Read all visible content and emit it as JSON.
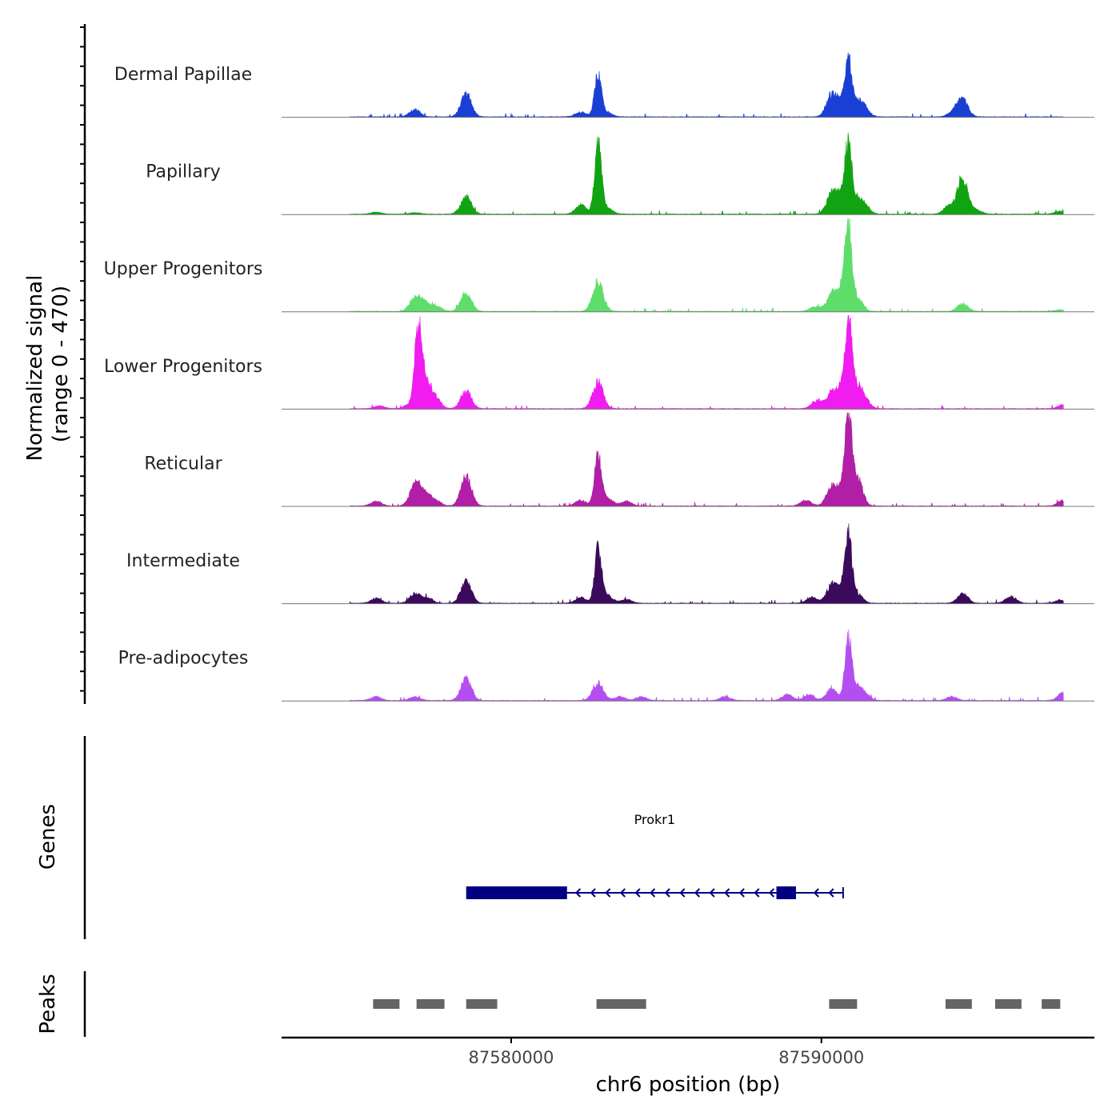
{
  "chart_data": {
    "type": "area",
    "title": "",
    "ylabel_line1": "Normalized signal",
    "ylabel_line2": "(range 0 - 470)",
    "xlabel": "chr6 position (bp)",
    "xlim": [
      87572600,
      87598800
    ],
    "ylim": [
      0,
      470
    ],
    "x_ticks": [
      87580000,
      87590000
    ],
    "x_tick_labels": [
      "87580000",
      "87590000"
    ],
    "genes_label": "Genes",
    "peaks_label": "Peaks",
    "series": [
      {
        "name": "Dermal Papillae",
        "color": "#1a3fd4",
        "peaks": [
          [
            87576900,
            40
          ],
          [
            87578550,
            120
          ],
          [
            87582240,
            25
          ],
          [
            87582800,
            220
          ],
          [
            87583100,
            20
          ],
          [
            87590330,
            110
          ],
          [
            87590650,
            60
          ],
          [
            87590870,
            270
          ],
          [
            87591150,
            70
          ],
          [
            87591380,
            40
          ],
          [
            87594250,
            25
          ],
          [
            87594550,
            90
          ]
        ]
      },
      {
        "name": "Papillary",
        "color": "#12a312",
        "peaks": [
          [
            87575650,
            10
          ],
          [
            87576900,
            8
          ],
          [
            87578550,
            90
          ],
          [
            87582250,
            50
          ],
          [
            87582800,
            370
          ],
          [
            87583100,
            30
          ],
          [
            87590330,
            100
          ],
          [
            87590650,
            80
          ],
          [
            87590870,
            340
          ],
          [
            87591150,
            60
          ],
          [
            87591380,
            40
          ],
          [
            87594100,
            40
          ],
          [
            87594550,
            190
          ],
          [
            87595000,
            20
          ],
          [
            87597700,
            15
          ]
        ]
      },
      {
        "name": "Upper Progenitors",
        "color": "#5edd6a",
        "peaks": [
          [
            87576900,
            70
          ],
          [
            87577200,
            45
          ],
          [
            87577600,
            25
          ],
          [
            87578550,
            100
          ],
          [
            87582800,
            150
          ],
          [
            87590330,
            80
          ],
          [
            87590650,
            100
          ],
          [
            87590870,
            400
          ],
          [
            87591150,
            70
          ],
          [
            87589800,
            25
          ],
          [
            87594550,
            40
          ],
          [
            87597700,
            8
          ]
        ]
      },
      {
        "name": "Lower Progenitors",
        "color": "#f01cf0",
        "peaks": [
          [
            87575750,
            15
          ],
          [
            87576700,
            20
          ],
          [
            87577000,
            370
          ],
          [
            87577200,
            150
          ],
          [
            87577550,
            60
          ],
          [
            87578550,
            90
          ],
          [
            87582800,
            140
          ],
          [
            87590330,
            80
          ],
          [
            87590650,
            90
          ],
          [
            87590870,
            430
          ],
          [
            87591150,
            110
          ],
          [
            87591400,
            40
          ],
          [
            87589850,
            40
          ],
          [
            87597800,
            20
          ]
        ]
      },
      {
        "name": "Reticular",
        "color": "#b01fa5",
        "peaks": [
          [
            87575650,
            25
          ],
          [
            87576900,
            110
          ],
          [
            87577200,
            60
          ],
          [
            87577550,
            30
          ],
          [
            87578550,
            150
          ],
          [
            87582250,
            30
          ],
          [
            87582800,
            260
          ],
          [
            87583100,
            40
          ],
          [
            87583700,
            25
          ],
          [
            87590330,
            90
          ],
          [
            87590650,
            80
          ],
          [
            87590870,
            440
          ],
          [
            87591150,
            150
          ],
          [
            87589500,
            30
          ],
          [
            87597800,
            30
          ]
        ]
      },
      {
        "name": "Intermediate",
        "color": "#3b0a5c",
        "peaks": [
          [
            87575650,
            25
          ],
          [
            87576900,
            50
          ],
          [
            87577300,
            25
          ],
          [
            87578550,
            110
          ],
          [
            87582250,
            30
          ],
          [
            87582800,
            280
          ],
          [
            87583100,
            40
          ],
          [
            87583700,
            20
          ],
          [
            87590330,
            90
          ],
          [
            87590650,
            60
          ],
          [
            87590870,
            330
          ],
          [
            87591150,
            50
          ],
          [
            87589700,
            30
          ],
          [
            87594550,
            50
          ],
          [
            87596100,
            35
          ],
          [
            87597700,
            15
          ]
        ]
      },
      {
        "name": "Pre-adipocytes",
        "color": "#b44ef0",
        "peaks": [
          [
            87575650,
            20
          ],
          [
            87576900,
            20
          ],
          [
            87578550,
            110
          ],
          [
            87582800,
            90
          ],
          [
            87583500,
            20
          ],
          [
            87584200,
            20
          ],
          [
            87586900,
            20
          ],
          [
            87588900,
            30
          ],
          [
            87589600,
            30
          ],
          [
            87590330,
            60
          ],
          [
            87590870,
            310
          ],
          [
            87591150,
            60
          ],
          [
            87591400,
            30
          ],
          [
            87594200,
            20
          ],
          [
            87597800,
            40
          ]
        ]
      }
    ],
    "gene": {
      "name": "Prokr1",
      "start": 87578550,
      "end": 87590700,
      "strand": "-",
      "exons": [
        [
          87578550,
          87581800
        ],
        [
          87588550,
          87589180
        ]
      ]
    },
    "peak_regions": [
      [
        87575550,
        87576400
      ],
      [
        87576950,
        87577850
      ],
      [
        87578550,
        87579550
      ],
      [
        87582750,
        87583650
      ],
      [
        87583650,
        87584350
      ],
      [
        87590250,
        87591150
      ],
      [
        87594000,
        87594850
      ],
      [
        87595600,
        87596450
      ],
      [
        87597100,
        87597700
      ]
    ]
  }
}
